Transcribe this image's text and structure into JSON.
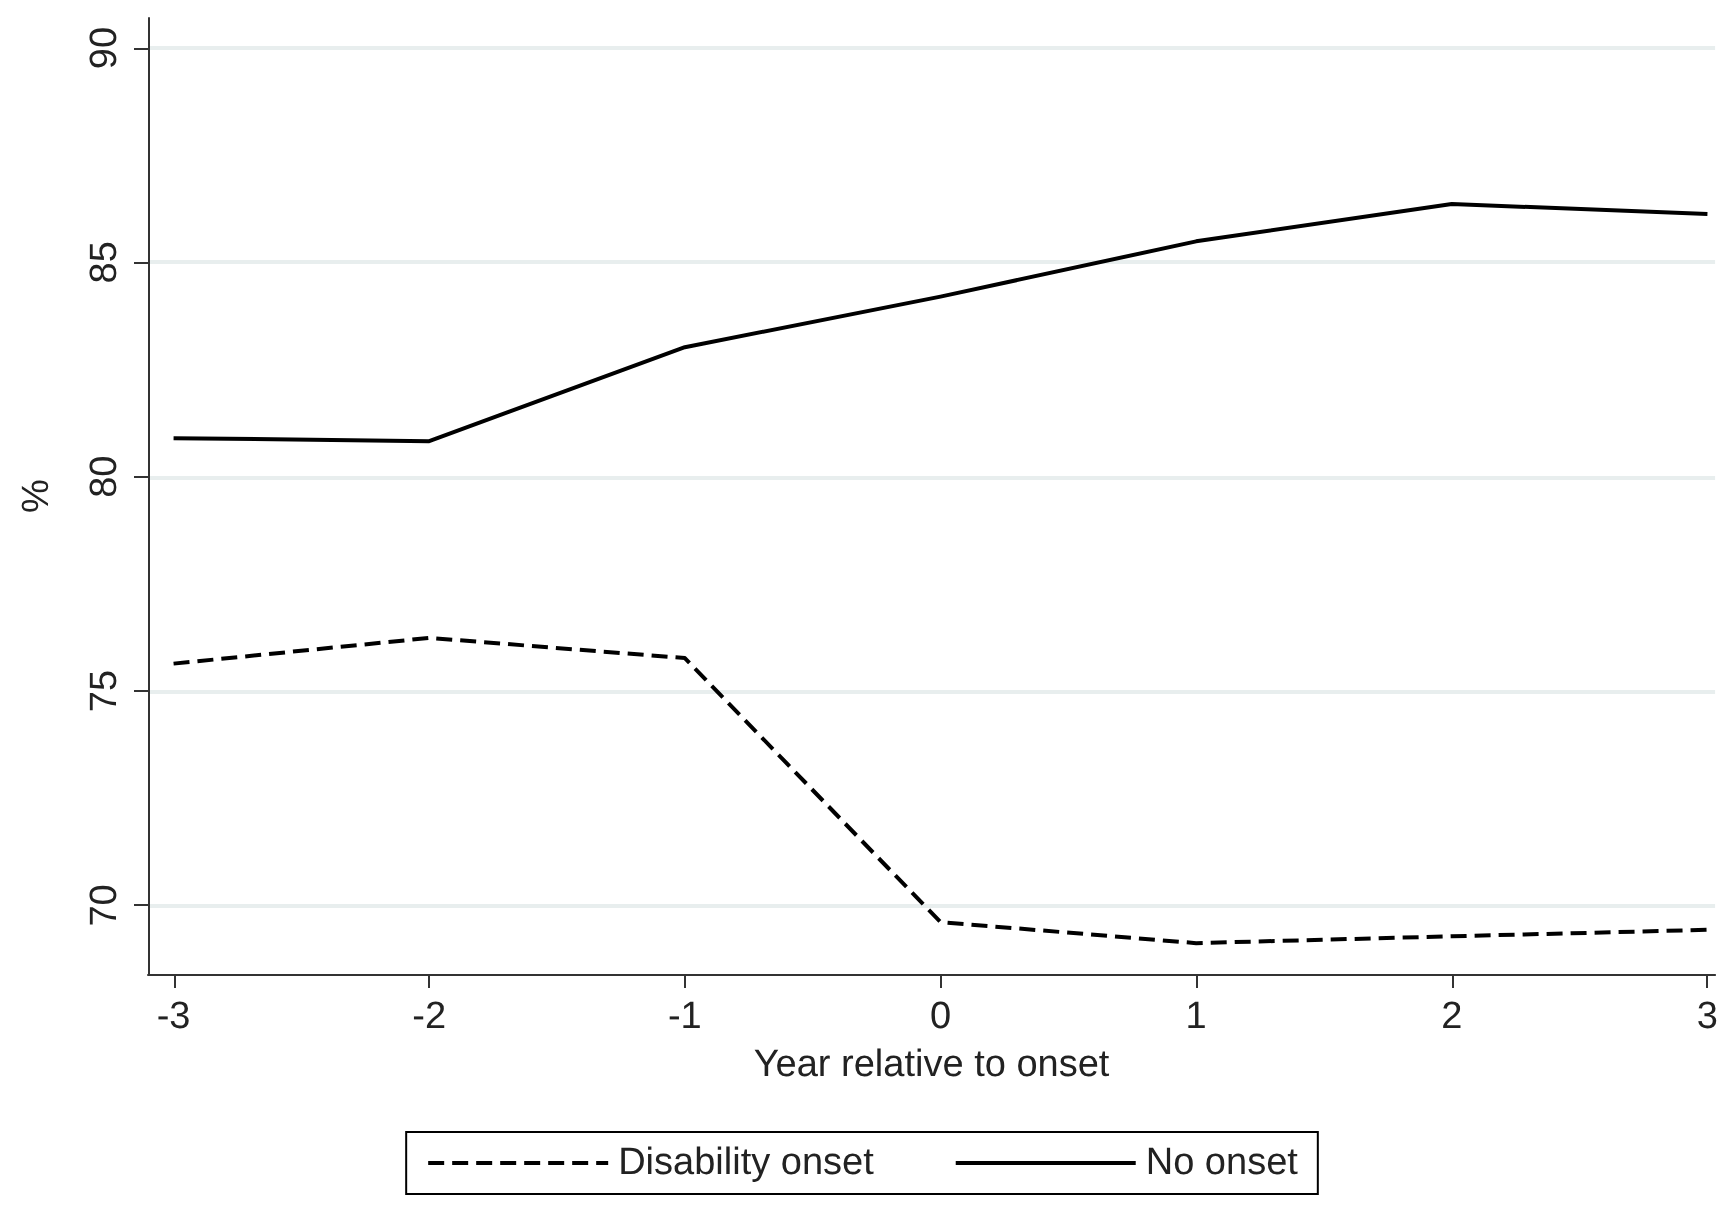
{
  "chart_data": {
    "type": "line",
    "xlabel": "Year relative to onset",
    "ylabel": "%",
    "x": [
      -3,
      -2,
      -1,
      0,
      1,
      2,
      3
    ],
    "series": [
      {
        "name": "Disability onset",
        "color": "#000000",
        "line_style": "dashed",
        "values": [
          75.64,
          76.24,
          75.77,
          69.61,
          69.12,
          69.28,
          69.43
        ]
      },
      {
        "name": "No onset",
        "color": "#000000",
        "line_style": "solid",
        "values": [
          80.9,
          80.83,
          83.02,
          84.2,
          85.49,
          86.36,
          86.13
        ]
      }
    ],
    "xlim": [
      -3.1,
      3.03
    ],
    "xticks": [
      -3,
      -2,
      -1,
      0,
      1,
      2,
      3
    ],
    "ylim": [
      68.4,
      90.7
    ],
    "yticks": [
      70,
      75,
      80,
      85,
      90
    ],
    "grid": "y",
    "legend": "bottom",
    "marker": "none"
  }
}
